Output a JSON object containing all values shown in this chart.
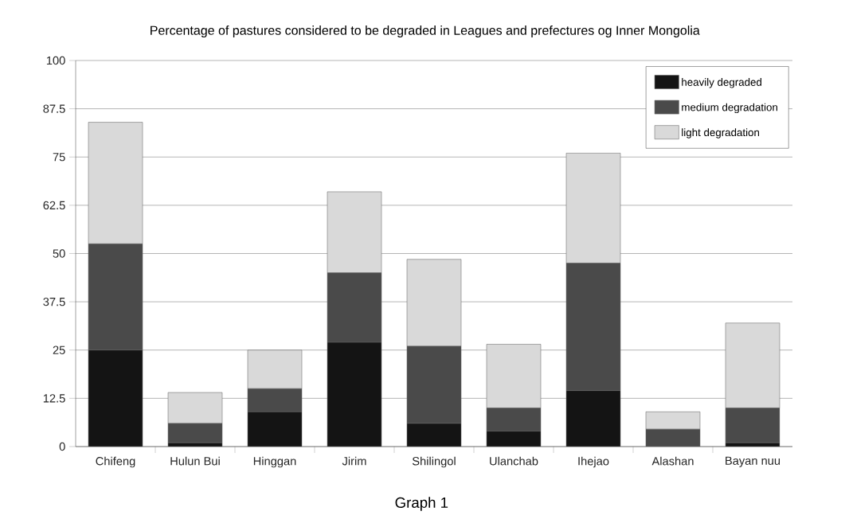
{
  "chart_data": {
    "type": "bar",
    "stacked": true,
    "title": "Percentage of pastures considered to be degraded in Leagues and prefectures og Inner Mongolia",
    "annotations": [
      "Graph 1"
    ],
    "categories": [
      "Chifeng",
      "Hulun Bui",
      "Hinggan",
      "Jirim",
      "Shilingol",
      "Ulanchab",
      "Ihejao",
      "Alashan",
      "Bayan nuu"
    ],
    "series": [
      {
        "name": "heavily degraded",
        "color": "#141414",
        "values": [
          25,
          1,
          9,
          27,
          6,
          4,
          14.5,
          0,
          1
        ]
      },
      {
        "name": "medium degradation",
        "color": "#4a4a4a",
        "values": [
          27.5,
          5,
          6,
          18,
          20,
          6,
          33,
          4.5,
          9
        ]
      },
      {
        "name": "light degradation",
        "color": "#d9d9d9",
        "values": [
          31.5,
          8,
          10,
          21,
          22.5,
          16.5,
          28.5,
          4.5,
          22
        ]
      }
    ],
    "ylim": [
      0,
      100
    ],
    "yticks": [
      0,
      12.5,
      25,
      37.5,
      50,
      62.5,
      75,
      87.5,
      100
    ],
    "grid": "y",
    "legend": "top right"
  }
}
